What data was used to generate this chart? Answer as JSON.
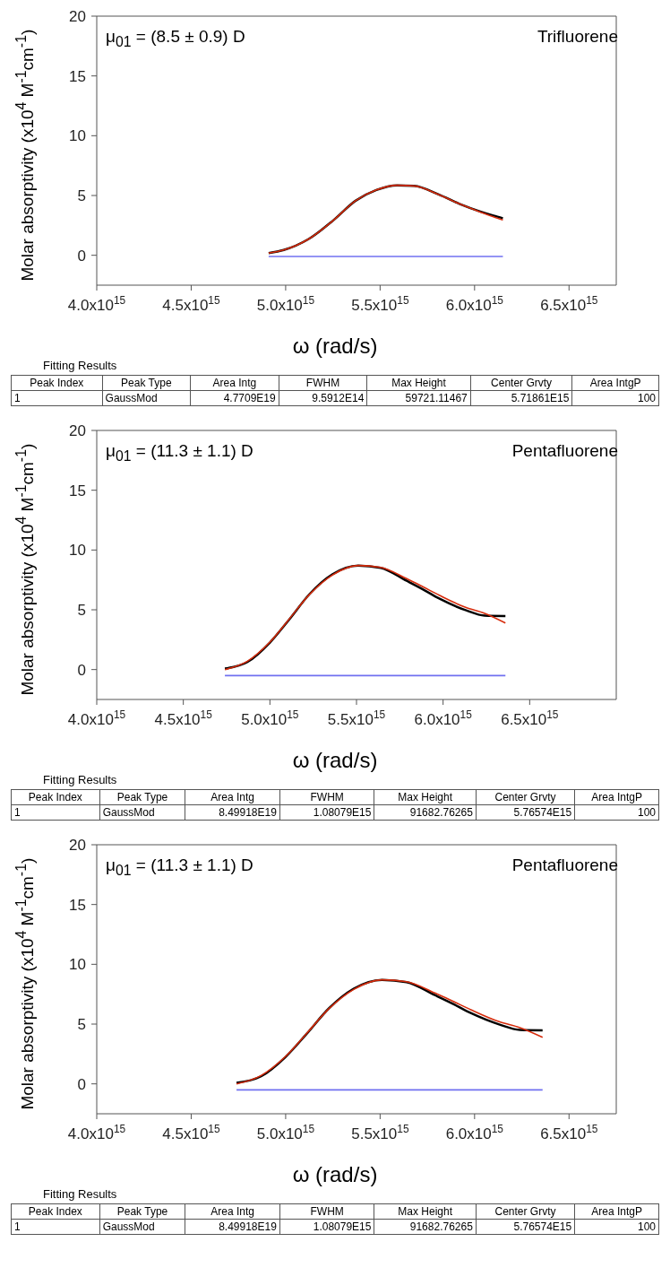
{
  "chart_data": [
    {
      "type": "line",
      "xlabel": "ω (rad/s)",
      "ylabel": "Molar absorptivity (x10$^{4}$ M$^{-1}$cm$^{-1}$)",
      "xlim": [
        4000000000000000.0,
        6750000000000000.0
      ],
      "ylim": [
        -2.5,
        20
      ],
      "xticks": [
        {
          "value": 4000000000000000.0,
          "label": "4.0x10$^{15}$"
        },
        {
          "value": 4500000000000000.0,
          "label": "4.5x10$^{15}$"
        },
        {
          "value": 5000000000000000.0,
          "label": "5.0x10$^{15}$"
        },
        {
          "value": 5500000000000000.0,
          "label": "5.5x10$^{15}$"
        },
        {
          "value": 6000000000000000.0,
          "label": "6.0x10$^{15}$"
        },
        {
          "value": 6500000000000000.0,
          "label": "6.5x10$^{15}$"
        }
      ],
      "yticks": [
        0,
        5,
        10,
        15,
        20
      ],
      "series": [
        {
          "color": "#000000",
          "x": [
            4910000000000000.0,
            4990000000000000.0,
            5120000000000000.0,
            5250000000000000.0,
            5370000000000000.0,
            5480000000000000.0,
            5590000000000000.0,
            5680000000000000.0,
            5810000000000000.0,
            5920000000000000.0,
            6030000000000000.0,
            6100000000000000.0,
            6150000000000000.0
          ],
          "values": [
            0.18,
            0.44,
            1.34,
            2.89,
            4.56,
            5.46,
            5.85,
            5.8,
            5.08,
            4.3,
            3.66,
            3.32,
            3.1
          ]
        },
        {
          "color": "#d62c0c",
          "x": [
            4910000000000000.0,
            4990000000000000.0,
            5120000000000000.0,
            5250000000000000.0,
            5370000000000000.0,
            5480000000000000.0,
            5590000000000000.0,
            5680000000000000.0,
            5810000000000000.0,
            5920000000000000.0,
            6030000000000000.0,
            6100000000000000.0,
            6150000000000000.0
          ],
          "values": [
            0.18,
            0.44,
            1.34,
            2.89,
            4.56,
            5.46,
            5.85,
            5.8,
            5.08,
            4.3,
            3.62,
            3.22,
            2.96
          ]
        },
        {
          "color": "#7070f0",
          "x": [
            4910000000000000.0,
            6150000000000000.0
          ],
          "values": [
            -0.1,
            -0.1
          ]
        }
      ],
      "annotations": [
        "μ$_{01}$ = (8.5 ± 0.9) D",
        "Trifluorene",
        "Fitting Results",
        "Peak Index",
        "Peak Type",
        "Area Intg",
        "FWHM",
        "Max Height",
        "Center Grvty",
        "Area IntgP",
        "1",
        "GaussMod",
        "4.7709E19",
        "9.5912E14",
        "59721.11467",
        "5.71861E15",
        "100"
      ]
    },
    {
      "type": "line",
      "xlabel": "ω (rad/s)",
      "ylabel": "Molar absorptivity (x10$^{4}$ M$^{-1}$cm$^{-1}$)",
      "xlim": [
        4000000000000000.0,
        7000000000000000.0
      ],
      "ylim": [
        -2.5,
        20
      ],
      "xticks": [
        {
          "value": 4000000000000000.0,
          "label": "4.0x10$^{15}$"
        },
        {
          "value": 4500000000000000.0,
          "label": "4.5x10$^{15}$"
        },
        {
          "value": 5000000000000000.0,
          "label": "5.0x10$^{15}$"
        },
        {
          "value": 5500000000000000.0,
          "label": "5.5x10$^{15}$"
        },
        {
          "value": 6000000000000000.0,
          "label": "6.0x10$^{15}$"
        },
        {
          "value": 6500000000000000.0,
          "label": "6.5x10$^{15}$"
        }
      ],
      "yticks": [
        0,
        5,
        10,
        15,
        20
      ],
      "series": [
        {
          "color": "#000000",
          "x": [
            4740000000000000.0,
            4870000000000000.0,
            5000000000000000.0,
            5110000000000000.0,
            5230000000000000.0,
            5360000000000000.0,
            5510000000000000.0,
            5640000000000000.0,
            5790000000000000.0,
            5880000000000000.0,
            5980000000000000.0,
            6130000000000000.0,
            6240000000000000.0,
            6360000000000000.0
          ],
          "values": [
            0.08,
            0.63,
            2.26,
            4.16,
            6.33,
            7.96,
            8.7,
            8.51,
            7.42,
            6.74,
            5.92,
            4.97,
            4.51,
            4.48
          ]
        },
        {
          "color": "#d62c0c",
          "x": [
            4740000000000000.0,
            4870000000000000.0,
            5000000000000000.0,
            5110000000000000.0,
            5230000000000000.0,
            5360000000000000.0,
            5510000000000000.0,
            5640000000000000.0,
            5790000000000000.0,
            5880000000000000.0,
            5980000000000000.0,
            6130000000000000.0,
            6240000000000000.0,
            6360000000000000.0
          ],
          "values": [
            0.0,
            0.7,
            2.3,
            4.2,
            6.3,
            7.9,
            8.7,
            8.55,
            7.6,
            6.95,
            6.2,
            5.2,
            4.7,
            3.89
          ]
        },
        {
          "color": "#7070f0",
          "x": [
            4740000000000000.0,
            6360000000000000.0
          ],
          "values": [
            -0.5,
            -0.5
          ]
        }
      ],
      "annotations": [
        "μ$_{01}$ = (11.3 ± 1.1) D",
        "Pentafluorene",
        "Fitting Results",
        "Peak Index",
        "Peak Type",
        "Area Intg",
        "FWHM",
        "Max Height",
        "Center Grvty",
        "Area IntgP",
        "1",
        "GaussMod",
        "8.49918E19",
        "1.08079E15",
        "91682.76265",
        "5.76574E15",
        "100"
      ]
    },
    {
      "type": "line",
      "xlabel": "ω (rad/s)",
      "ylabel": "Molar absorptivity (x10$^{4}$ M$^{-1}$cm$^{-1}$)",
      "xlim": [
        4000000000000000.0,
        6750000000000000.0
      ],
      "ylim": [
        -2.5,
        20
      ],
      "xticks": [
        {
          "value": 4000000000000000.0,
          "label": "4.0x10$^{15}$"
        },
        {
          "value": 4500000000000000.0,
          "label": "4.5x10$^{15}$"
        },
        {
          "value": 5000000000000000.0,
          "label": "5.0x10$^{15}$"
        },
        {
          "value": 5500000000000000.0,
          "label": "5.5x10$^{15}$"
        },
        {
          "value": 6000000000000000.0,
          "label": "6.0x10$^{15}$"
        },
        {
          "value": 6500000000000000.0,
          "label": "6.5x10$^{15}$"
        }
      ],
      "yticks": [
        0,
        5,
        10,
        15,
        20
      ],
      "series": [
        {
          "color": "#000000",
          "x": [
            4740000000000000.0,
            4870000000000000.0,
            5000000000000000.0,
            5110000000000000.0,
            5230000000000000.0,
            5360000000000000.0,
            5510000000000000.0,
            5640000000000000.0,
            5790000000000000.0,
            5880000000000000.0,
            5980000000000000.0,
            6130000000000000.0,
            6240000000000000.0,
            6360000000000000.0
          ],
          "values": [
            0.08,
            0.63,
            2.26,
            4.16,
            6.33,
            7.96,
            8.7,
            8.51,
            7.42,
            6.74,
            5.92,
            4.97,
            4.51,
            4.48
          ]
        },
        {
          "color": "#d62c0c",
          "x": [
            4740000000000000.0,
            4870000000000000.0,
            5000000000000000.0,
            5110000000000000.0,
            5230000000000000.0,
            5360000000000000.0,
            5510000000000000.0,
            5640000000000000.0,
            5790000000000000.0,
            5880000000000000.0,
            5980000000000000.0,
            6130000000000000.0,
            6240000000000000.0,
            6360000000000000.0
          ],
          "values": [
            0.0,
            0.7,
            2.3,
            4.2,
            6.3,
            7.9,
            8.7,
            8.55,
            7.6,
            6.95,
            6.2,
            5.2,
            4.7,
            3.89
          ]
        },
        {
          "color": "#7070f0",
          "x": [
            4740000000000000.0,
            6360000000000000.0
          ],
          "values": [
            -0.5,
            -0.5
          ]
        }
      ],
      "annotations": [
        "μ$_{01}$ = (11.3 ± 1.1) D",
        "Pentafluorene",
        "Fitting Results",
        "Peak Index",
        "Peak Type",
        "Area Intg",
        "FWHM",
        "Max Height",
        "Center Grvty",
        "Area IntgP",
        "1",
        "GaussMod",
        "8.49918E19",
        "1.08079E15",
        "91682.76265",
        "5.76574E15",
        "100"
      ]
    }
  ]
}
